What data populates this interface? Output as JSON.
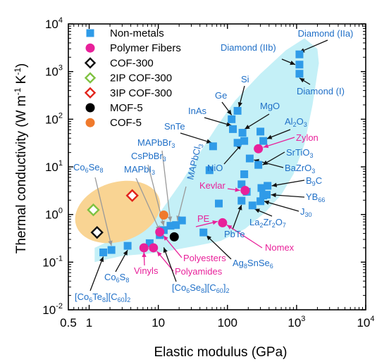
{
  "chart_data": {
    "type": "scatter",
    "xlabel": "Elastic modulus (GPa)",
    "ylabel": "Thermal conductivity (W m^-1 K^-1)",
    "xscale": "log",
    "yscale": "log",
    "xlim": [
      0.5,
      10000
    ],
    "ylim": [
      0.01,
      10000
    ],
    "x_ticks": [
      {
        "value": 0.5,
        "base": "0.5",
        "exp": ""
      },
      {
        "value": 1,
        "base": "1",
        "exp": ""
      },
      {
        "value": 10,
        "base": "10",
        "exp": ""
      },
      {
        "value": 100,
        "base": "100",
        "exp": ""
      },
      {
        "value": 1000,
        "base": "10",
        "exp": "3"
      },
      {
        "value": 10000,
        "base": "10",
        "exp": "4"
      }
    ],
    "y_ticks": [
      {
        "value": 0.01,
        "base": "10",
        "exp": "-2"
      },
      {
        "value": 0.1,
        "base": "10",
        "exp": "-1"
      },
      {
        "value": 1,
        "base": "10",
        "exp": "0"
      },
      {
        "value": 10,
        "base": "10",
        "exp": "1"
      },
      {
        "value": 100,
        "base": "10",
        "exp": "2"
      },
      {
        "value": 1000,
        "base": "10",
        "exp": "3"
      },
      {
        "value": 10000,
        "base": "10",
        "exp": "4"
      }
    ],
    "legend_position": "top-left",
    "series": [
      {
        "name": "Non-metals",
        "marker": "square",
        "color": "#2f9be8",
        "points": [
          [
            1.6,
            0.16
          ],
          [
            2.1,
            0.18
          ],
          [
            3.6,
            0.22
          ],
          [
            7.5,
            0.25
          ],
          [
            10.5,
            0.37
          ],
          [
            12,
            0.47
          ],
          [
            15,
            0.58
          ],
          [
            18,
            0.6
          ],
          [
            22,
            0.75
          ],
          [
            45,
            0.42
          ],
          [
            75,
            1.7
          ],
          [
            160,
            1.95
          ],
          [
            190,
            3.0
          ],
          [
            160,
            4.3
          ],
          [
            175,
            7.0
          ],
          [
            230,
            1.55
          ],
          [
            300,
            1.9
          ],
          [
            310,
            3.6
          ],
          [
            330,
            2.5
          ],
          [
            380,
            4.0
          ],
          [
            370,
            2.6
          ],
          [
            280,
            11
          ],
          [
            210,
            15
          ],
          [
            140,
            32
          ],
          [
            175,
            35
          ],
          [
            120,
            62
          ],
          [
            115,
            100
          ],
          [
            140,
            150
          ],
          [
            165,
            52
          ],
          [
            300,
            55
          ],
          [
            330,
            35
          ],
          [
            55,
            8.5
          ],
          [
            62,
            27
          ],
          [
            1100,
            2300
          ],
          [
            1100,
            1400
          ],
          [
            1100,
            900
          ]
        ]
      },
      {
        "name": "Polymer Fibers",
        "marker": "circle",
        "color": "#e8219a",
        "points": [
          [
            6.2,
            0.2
          ],
          [
            8.5,
            0.2
          ],
          [
            10.5,
            0.43
          ],
          [
            85,
            0.67
          ],
          [
            180,
            3.2
          ],
          [
            280,
            24
          ]
        ]
      },
      {
        "name": "COF-300",
        "marker": "diamond-open",
        "color": "#111111",
        "points": [
          [
            1.3,
            0.42
          ]
        ]
      },
      {
        "name": "2IP COF-300",
        "marker": "diamond-open",
        "color": "#7fc241",
        "points": [
          [
            1.15,
            1.25
          ]
        ]
      },
      {
        "name": "3IP COF-300",
        "marker": "diamond-open",
        "color": "#e2231a",
        "points": [
          [
            4.2,
            2.5
          ]
        ]
      },
      {
        "name": "MOF-5",
        "marker": "circle",
        "color": "#000000",
        "points": [
          [
            17,
            0.34
          ]
        ]
      },
      {
        "name": "COF-5",
        "marker": "circle",
        "color": "#f07a2c",
        "points": [
          [
            12,
            0.97
          ]
        ]
      }
    ],
    "annotations": [
      {
        "text": "Diamond (IIa)",
        "color": "#1f6fc7"
      },
      {
        "text": "Diamond (IIb)",
        "color": "#1f6fc7"
      },
      {
        "text": "Diamond (I)",
        "color": "#1f6fc7"
      },
      {
        "text": "Si",
        "color": "#1f6fc7"
      },
      {
        "text": "Ge",
        "color": "#1f6fc7"
      },
      {
        "text": "MgO",
        "color": "#1f6fc7"
      },
      {
        "text": "InAs",
        "color": "#1f6fc7"
      },
      {
        "text": "Al2O3",
        "color": "#1f6fc7"
      },
      {
        "text": "SnTe",
        "color": "#1f6fc7"
      },
      {
        "text": "Zylon",
        "color": "#e8219a"
      },
      {
        "text": "SrTiO3",
        "color": "#1f6fc7"
      },
      {
        "text": "NiO",
        "color": "#1f6fc7"
      },
      {
        "text": "BaZrO3",
        "color": "#1f6fc7"
      },
      {
        "text": "B9C",
        "color": "#1f6fc7"
      },
      {
        "text": "Kevlar",
        "color": "#e8219a"
      },
      {
        "text": "YB66",
        "color": "#1f6fc7"
      },
      {
        "text": "J30",
        "color": "#1f6fc7"
      },
      {
        "text": "La2Zr2O7",
        "color": "#1f6fc7"
      },
      {
        "text": "PbTe",
        "color": "#1f6fc7"
      },
      {
        "text": "PE",
        "color": "#e8219a"
      },
      {
        "text": "Nomex",
        "color": "#e8219a"
      },
      {
        "text": "Ag8SnSe6",
        "color": "#1f6fc7"
      },
      {
        "text": "Polyesters",
        "color": "#e8219a"
      },
      {
        "text": "Polyamides",
        "color": "#e8219a"
      },
      {
        "text": "Vinyls",
        "color": "#e8219a"
      },
      {
        "text": "Co6Se8",
        "color": "#1f6fc7"
      },
      {
        "text": "MAPbBr3",
        "color": "#1f6fc7"
      },
      {
        "text": "CsPbBr3",
        "color": "#1f6fc7"
      },
      {
        "text": "MAPbI3",
        "color": "#1f6fc7"
      },
      {
        "text": "MAPbCl3",
        "color": "#1f6fc7"
      },
      {
        "text": "Co6S8",
        "color": "#1f6fc7"
      },
      {
        "text": "[Co6Te8][C60]2",
        "color": "#1f6fc7"
      },
      {
        "text": "[Co6Se8][C60]2",
        "color": "#1f6fc7"
      }
    ],
    "regions": [
      {
        "name": "non-metal-band",
        "color": "#c4f0f7"
      },
      {
        "name": "cof-region",
        "color": "#f9d493"
      }
    ]
  }
}
